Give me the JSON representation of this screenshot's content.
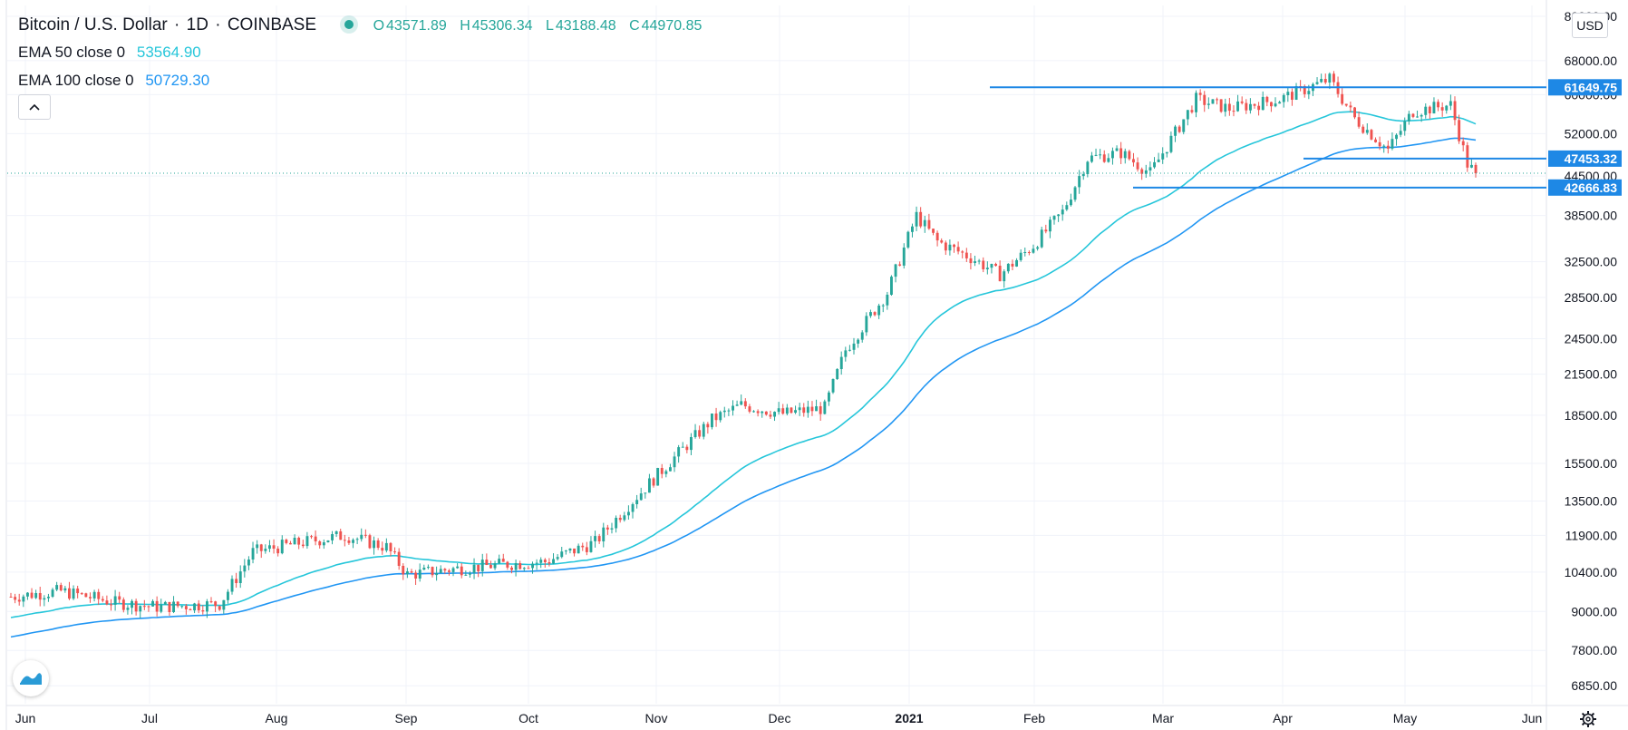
{
  "header": {
    "symbol": "Bitcoin / U.S. Dollar",
    "interval": "1D",
    "exchange": "COINBASE",
    "ohlc": {
      "open_label": "O",
      "open": "43571.89",
      "high_label": "H",
      "high": "45306.34",
      "low_label": "L",
      "low": "43188.48",
      "close_label": "C",
      "close": "44970.85"
    }
  },
  "indicators": [
    {
      "label": "EMA 50 close 0",
      "value": "53564.90",
      "color": "#26c6da"
    },
    {
      "label": "EMA 100 close 0",
      "value": "50729.30",
      "color": "#2196f3"
    }
  ],
  "currency_label": "USD",
  "colors": {
    "up": "#26a69a",
    "down": "#ef5350",
    "ema50": "#26c6da",
    "ema100": "#2196f3",
    "level": "#1e88e5"
  },
  "chart_data": {
    "type": "candlestick",
    "title": "Bitcoin / U.S. Dollar, 1D, COINBASE",
    "y_scale": "log",
    "ylim": [
      6500,
      80000
    ],
    "y_ticks": [
      "80000.00",
      "68000.00",
      "60000.00",
      "52000.00",
      "44500.00",
      "38500.00",
      "32500.00",
      "28500.00",
      "24500.00",
      "21500.00",
      "18500.00",
      "15500.00",
      "13500.00",
      "11900.00",
      "10400.00",
      "9000.00",
      "7800.00",
      "6850.00"
    ],
    "x_labels": [
      "Jun",
      "Jul",
      "Aug",
      "Sep",
      "Oct",
      "Nov",
      "Dec",
      "2021",
      "Feb",
      "Mar",
      "Apr",
      "May",
      "Jun"
    ],
    "close_series": [
      {
        "month": "Jun",
        "approx_close": 9500
      },
      {
        "month": "Jul",
        "approx_close": 9200
      },
      {
        "month": "Aug",
        "approx_close": 11500
      },
      {
        "month": "Sep",
        "approx_close": 10700
      },
      {
        "month": "Oct",
        "approx_close": 10800
      },
      {
        "month": "Nov",
        "approx_close": 13700
      },
      {
        "month": "Dec",
        "approx_close": 19500
      },
      {
        "month": "2021",
        "approx_close": 29000
      },
      {
        "month": "Feb",
        "approx_close": 33500
      },
      {
        "month": "Mar",
        "approx_close": 49000
      },
      {
        "month": "Apr",
        "approx_close": 58800
      },
      {
        "month": "May",
        "approx_close": 57700
      },
      {
        "month": "end",
        "approx_close": 44970.85
      }
    ],
    "series": [
      {
        "name": "EMA 50 close 0",
        "last": 53564.9
      },
      {
        "name": "EMA 100 close 0",
        "last": 50729.3
      }
    ],
    "horizontal_levels": [
      {
        "label": "61649.75",
        "value": 61649.75
      },
      {
        "label": "47453.32",
        "value": 47453.32
      },
      {
        "label": "42666.83",
        "value": 42666.83
      }
    ],
    "last_price": 44970.85
  }
}
